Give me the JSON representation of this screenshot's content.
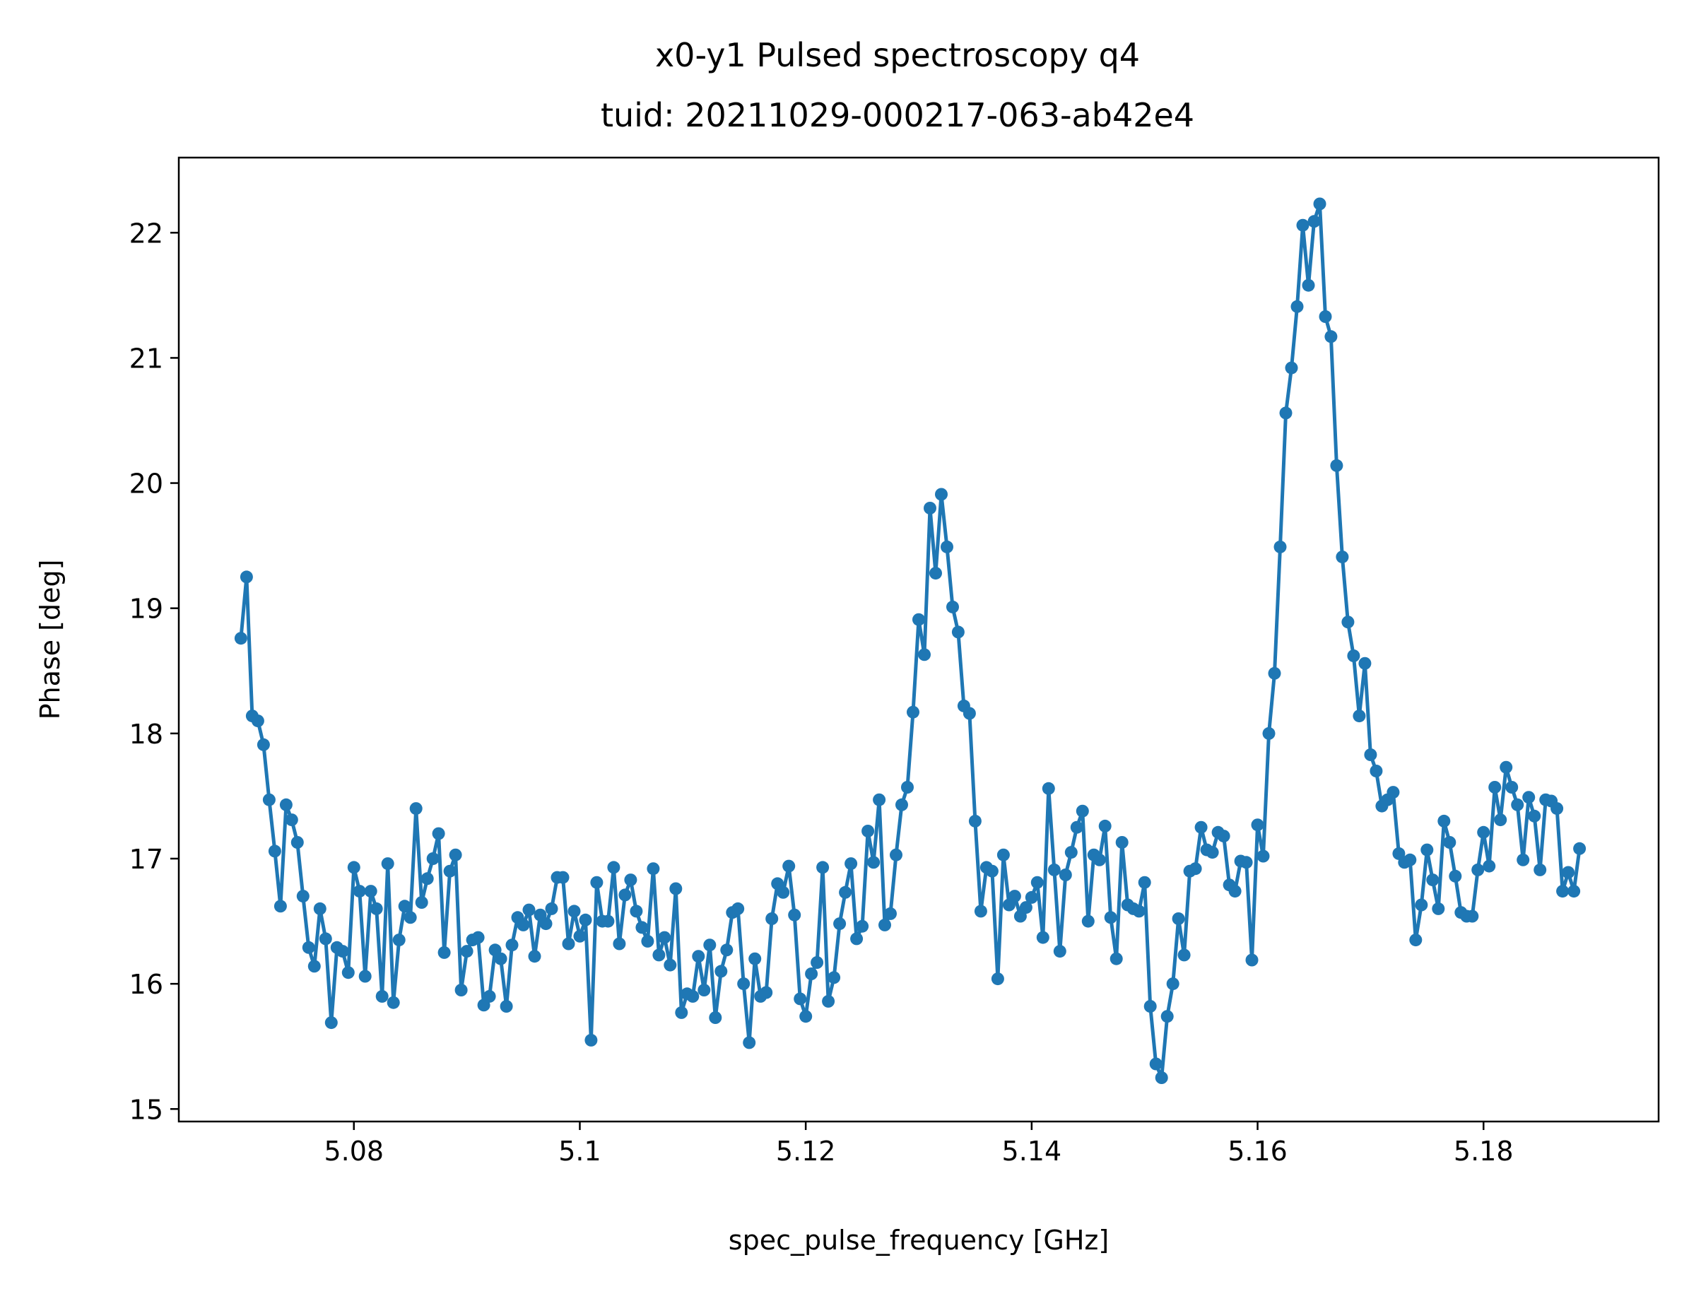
{
  "chart_data": {
    "type": "line",
    "title": "x0-y1 Pulsed spectroscopy q4",
    "subtitle": "tuid: 20211029-000217-063-ab42e4",
    "xlabel": "spec_pulse_frequency [GHz]",
    "ylabel": "Phase [deg]",
    "xlim": [
      5.0645,
      5.1955
    ],
    "ylim": [
      14.9,
      22.6
    ],
    "x_ticks": [
      5.08,
      5.1,
      5.12,
      5.14,
      5.16,
      5.18
    ],
    "x_tick_labels": [
      "5.08",
      "5.1",
      "5.12",
      "5.14",
      "5.16",
      "5.18"
    ],
    "y_ticks": [
      15,
      16,
      17,
      18,
      19,
      20,
      21,
      22
    ],
    "y_tick_labels": [
      "15",
      "16",
      "17",
      "18",
      "19",
      "20",
      "21",
      "22"
    ],
    "grid": false,
    "marker": "circle",
    "color": "#1f77b4",
    "series": [
      {
        "x_start": 5.07,
        "x_step": 0.0005,
        "values": [
          18.76,
          19.25,
          18.14,
          18.1,
          17.91,
          17.47,
          17.06,
          16.62,
          17.43,
          17.31,
          17.13,
          16.7,
          16.29,
          16.14,
          16.6,
          16.36,
          15.69,
          16.29,
          16.26,
          16.09,
          16.93,
          16.74,
          16.06,
          16.74,
          16.6,
          15.9,
          16.96,
          15.85,
          16.35,
          16.62,
          16.53,
          17.4,
          16.65,
          16.84,
          17.0,
          17.2,
          16.25,
          16.9,
          17.03,
          15.95,
          16.26,
          16.35,
          16.37,
          15.83,
          15.9,
          16.27,
          16.2,
          15.82,
          16.31,
          16.53,
          16.47,
          16.59,
          16.22,
          16.55,
          16.48,
          16.6,
          16.85,
          16.85,
          16.32,
          16.58,
          16.38,
          16.51,
          15.55,
          16.81,
          16.5,
          16.5,
          16.93,
          16.32,
          16.71,
          16.83,
          16.58,
          16.45,
          16.34,
          16.92,
          16.23,
          16.37,
          16.15,
          16.76,
          15.77,
          15.92,
          15.9,
          16.22,
          15.95,
          16.31,
          15.73,
          16.1,
          16.27,
          16.57,
          16.6,
          16.0,
          15.53,
          16.2,
          15.9,
          15.93,
          16.52,
          16.8,
          16.73,
          16.94,
          16.55,
          15.88,
          15.74,
          16.08,
          16.17,
          16.93,
          15.86,
          16.05,
          16.48,
          16.73,
          16.96,
          16.36,
          16.46,
          17.22,
          16.97,
          17.47,
          16.47,
          16.56,
          17.03,
          17.43,
          17.57,
          18.17,
          18.91,
          18.63,
          19.8,
          19.28,
          19.91,
          19.49,
          19.01,
          18.81,
          18.22,
          18.16,
          17.3,
          16.58,
          16.93,
          16.9,
          16.04,
          17.03,
          16.63,
          16.7,
          16.54,
          16.61,
          16.69,
          16.81,
          16.37,
          17.56,
          16.91,
          16.26,
          16.87,
          17.05,
          17.25,
          17.38,
          16.5,
          17.03,
          16.99,
          17.26,
          16.53,
          16.2,
          17.13,
          16.63,
          16.6,
          16.58,
          16.81,
          15.82,
          15.36,
          15.25,
          15.74,
          16.0,
          16.52,
          16.23,
          16.9,
          16.92,
          17.25,
          17.07,
          17.05,
          17.21,
          17.18,
          16.79,
          16.74,
          16.98,
          16.97,
          16.19,
          17.27,
          17.02,
          18.0,
          18.48,
          19.49,
          20.56,
          20.92,
          21.41,
          22.06,
          21.58,
          22.09,
          22.23,
          21.33,
          21.17,
          20.14,
          19.41,
          18.89,
          18.62,
          18.14,
          18.56,
          17.83,
          17.7,
          17.42,
          17.47,
          17.53,
          17.04,
          16.97,
          16.99,
          16.35,
          16.63,
          17.07,
          16.83,
          16.6,
          17.3,
          17.13,
          16.86,
          16.57,
          16.54,
          16.54,
          16.91,
          17.21,
          16.94,
          17.57,
          17.31,
          17.73,
          17.57,
          17.43,
          16.99,
          17.49,
          17.34,
          16.91,
          17.47,
          17.46,
          17.4,
          16.74,
          16.89,
          16.74,
          17.08
        ]
      }
    ]
  }
}
